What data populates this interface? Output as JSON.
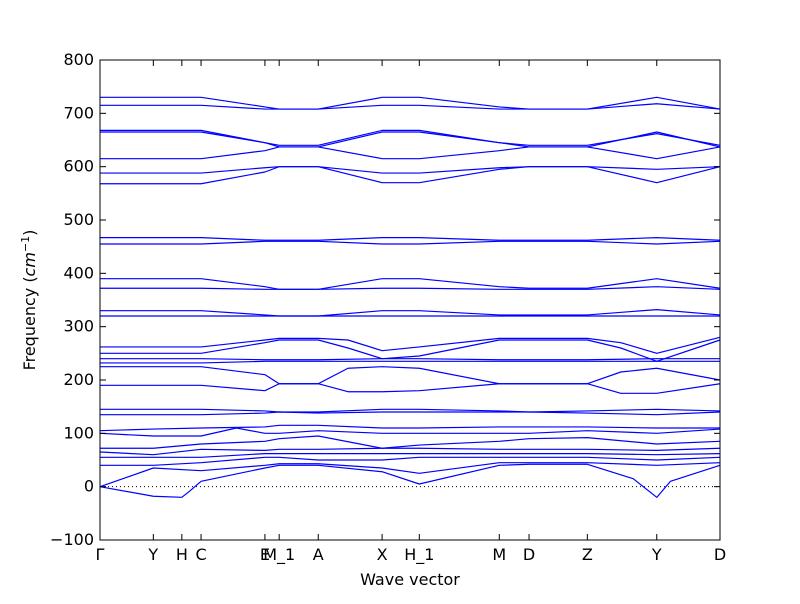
{
  "chart_data": {
    "type": "line",
    "title": "",
    "xlabel": "Wave vector",
    "ylabel": "Frequency (cm^{-1})",
    "ylabel_parts": {
      "prefix": "Frequency (",
      "unit_base": "cm",
      "unit_exp": "−1",
      "suffix": ")"
    },
    "ylim": [
      -100,
      800
    ],
    "yticks": [
      -100,
      0,
      100,
      200,
      300,
      400,
      500,
      600,
      700,
      800
    ],
    "y_tick_labels": [
      "−100",
      "0",
      "100",
      "200",
      "300",
      "400",
      "500",
      "600",
      "700",
      "800"
    ],
    "xlim": [
      0,
      100
    ],
    "high_symmetry_points": [
      {
        "label": "Γ",
        "x": 0
      },
      {
        "label": "Y",
        "x": 8.6
      },
      {
        "label": "H",
        "x": 13.2
      },
      {
        "label": "C",
        "x": 16.3
      },
      {
        "label": "E",
        "x": 26.6
      },
      {
        "label": "M_1",
        "x": 28.9
      },
      {
        "label": "A",
        "x": 35.2
      },
      {
        "label": "X",
        "x": 45.5
      },
      {
        "label": "H_1",
        "x": 51.5
      },
      {
        "label": "M",
        "x": 64.4
      },
      {
        "label": "D",
        "x": 69.2
      },
      {
        "label": "Z",
        "x": 78.6
      },
      {
        "label": "Y",
        "x": 89.8
      },
      {
        "label": "D",
        "x": 100
      }
    ],
    "zero_line": 0,
    "line_color": "#0000ff",
    "grid": false,
    "series": [
      {
        "x": [
          0,
          8.6,
          13.2,
          14.5,
          16.3
        ],
        "y": [
          0,
          -18,
          -20,
          -8,
          10
        ]
      },
      {
        "x": [
          16.3,
          26.6,
          28.9,
          35.2,
          45.5,
          51.5,
          64.4,
          69.2,
          78.6,
          86,
          89.8,
          92,
          100
        ],
        "y": [
          10,
          35,
          40,
          40,
          28,
          5,
          40,
          42,
          42,
          15,
          -20,
          10,
          40
        ]
      },
      {
        "x": [
          0,
          8.6,
          16.3,
          26.6,
          28.9,
          35.2,
          45.5,
          51.5,
          64.4,
          69.2,
          78.6,
          89.8,
          100
        ],
        "y": [
          0,
          35,
          30,
          40,
          43,
          43,
          35,
          25,
          45,
          45,
          45,
          40,
          45
        ]
      },
      {
        "x": [
          0,
          8.6,
          16.3,
          26.6,
          28.9,
          35.2,
          45.5,
          51.5,
          64.4,
          69.2,
          78.6,
          89.8,
          100
        ],
        "y": [
          40,
          40,
          45,
          55,
          55,
          50,
          50,
          55,
          55,
          55,
          55,
          50,
          55
        ]
      },
      {
        "x": [
          0,
          8.6,
          16.3,
          26.6,
          28.9,
          35.2,
          45.5,
          51.5,
          64.4,
          69.2,
          78.6,
          89.8,
          100
        ],
        "y": [
          55,
          55,
          55,
          62,
          62,
          62,
          62,
          62,
          62,
          62,
          62,
          60,
          62
        ]
      },
      {
        "x": [
          0,
          8.6,
          16.3,
          26.6,
          28.9,
          35.2,
          45.5,
          51.5,
          64.4,
          69.2,
          78.6,
          89.8,
          100
        ],
        "y": [
          65,
          60,
          70,
          68,
          70,
          70,
          72,
          72,
          70,
          70,
          70,
          68,
          72
        ]
      },
      {
        "x": [
          0,
          8.6,
          16.3,
          26.6,
          28.9,
          35.2,
          45.5,
          51.5,
          64.4,
          69.2,
          78.6,
          89.8,
          100
        ],
        "y": [
          72,
          72,
          80,
          85,
          90,
          95,
          72,
          78,
          85,
          90,
          92,
          80,
          85
        ]
      },
      {
        "x": [
          0,
          8.6,
          16.3,
          22,
          26.6,
          28.9,
          35.2,
          45.5,
          51.5,
          64.4,
          69.2,
          78.6,
          89.8,
          100
        ],
        "y": [
          100,
          95,
          95,
          110,
          100,
          100,
          105,
          100,
          100,
          100,
          100,
          105,
          100,
          108
        ]
      },
      {
        "x": [
          0,
          8.6,
          16.3,
          26.6,
          28.9,
          35.2,
          45.5,
          51.5,
          64.4,
          69.2,
          78.6,
          89.8,
          100
        ],
        "y": [
          105,
          108,
          110,
          112,
          115,
          115,
          110,
          110,
          112,
          112,
          112,
          110,
          110
        ]
      },
      {
        "x": [
          0,
          8.6,
          16.3,
          26.6,
          28.9,
          35.2,
          45.5,
          51.5,
          64.4,
          69.2,
          78.6,
          89.8,
          100
        ],
        "y": [
          135,
          135,
          135,
          138,
          140,
          138,
          140,
          140,
          140,
          140,
          138,
          135,
          140
        ]
      },
      {
        "x": [
          0,
          8.6,
          16.3,
          26.6,
          28.9,
          35.2,
          45.5,
          51.5,
          64.4,
          69.2,
          78.6,
          89.8,
          100
        ],
        "y": [
          145,
          145,
          145,
          142,
          140,
          140,
          145,
          145,
          142,
          140,
          142,
          145,
          142
        ]
      },
      {
        "x": [
          0,
          8.6,
          16.3,
          26.6,
          28.9,
          35.2,
          40,
          45.5,
          51.5,
          64.4,
          69.2,
          78.6,
          84,
          89.8,
          100
        ],
        "y": [
          190,
          190,
          190,
          180,
          193,
          193,
          178,
          178,
          180,
          193,
          193,
          193,
          175,
          175,
          193
        ]
      },
      {
        "x": [
          0,
          8.6,
          16.3,
          26.6,
          28.9,
          35.2,
          40,
          45.5,
          51.5,
          64.4,
          69.2,
          78.6,
          84,
          89.8,
          100
        ],
        "y": [
          225,
          225,
          225,
          210,
          193,
          193,
          222,
          225,
          222,
          193,
          193,
          193,
          215,
          222,
          200
        ]
      },
      {
        "x": [
          0,
          8.6,
          16.3,
          26.6,
          28.9,
          35.2,
          45.5,
          51.5,
          64.4,
          69.2,
          78.6,
          89.8,
          100
        ],
        "y": [
          232,
          232,
          232,
          235,
          235,
          235,
          235,
          235,
          235,
          235,
          235,
          235,
          235
        ]
      },
      {
        "x": [
          0,
          8.6,
          16.3,
          26.6,
          28.9,
          35.2,
          45.5,
          51.5,
          64.4,
          69.2,
          78.6,
          89.8,
          100
        ],
        "y": [
          240,
          240,
          240,
          238,
          238,
          238,
          240,
          240,
          238,
          238,
          238,
          240,
          240
        ]
      },
      {
        "x": [
          0,
          8.6,
          16.3,
          26.6,
          28.9,
          35.2,
          40,
          45.5,
          51.5,
          64.4,
          69.2,
          78.6,
          84,
          89.8,
          100
        ],
        "y": [
          250,
          250,
          250,
          270,
          275,
          275,
          260,
          240,
          245,
          275,
          275,
          275,
          260,
          235,
          275
        ]
      },
      {
        "x": [
          0,
          8.6,
          16.3,
          26.6,
          28.9,
          35.2,
          40,
          45.5,
          51.5,
          64.4,
          69.2,
          78.6,
          84,
          89.8,
          100
        ],
        "y": [
          262,
          262,
          262,
          275,
          278,
          278,
          275,
          255,
          262,
          278,
          278,
          278,
          270,
          250,
          280
        ]
      },
      {
        "x": [
          0,
          8.6,
          16.3,
          26.6,
          28.9,
          35.2,
          45.5,
          51.5,
          64.4,
          69.2,
          78.6,
          89.8,
          100
        ],
        "y": [
          320,
          320,
          320,
          320,
          320,
          320,
          320,
          320,
          320,
          320,
          320,
          320,
          320
        ]
      },
      {
        "x": [
          0,
          8.6,
          16.3,
          26.6,
          28.9,
          35.2,
          45.5,
          51.5,
          64.4,
          69.2,
          78.6,
          89.8,
          100
        ],
        "y": [
          330,
          330,
          330,
          322,
          320,
          320,
          330,
          330,
          322,
          322,
          322,
          332,
          322
        ]
      },
      {
        "x": [
          0,
          8.6,
          16.3,
          26.6,
          28.9,
          35.2,
          45.5,
          51.5,
          64.4,
          69.2,
          78.6,
          89.8,
          100
        ],
        "y": [
          372,
          372,
          372,
          370,
          370,
          370,
          372,
          372,
          370,
          370,
          370,
          375,
          370
        ]
      },
      {
        "x": [
          0,
          8.6,
          16.3,
          26.6,
          28.9,
          35.2,
          45.5,
          51.5,
          64.4,
          69.2,
          78.6,
          89.8,
          100
        ],
        "y": [
          390,
          390,
          390,
          375,
          370,
          370,
          390,
          390,
          375,
          372,
          372,
          390,
          372
        ]
      },
      {
        "x": [
          0,
          8.6,
          16.3,
          26.6,
          28.9,
          35.2,
          45.5,
          51.5,
          64.4,
          69.2,
          78.6,
          89.8,
          100
        ],
        "y": [
          455,
          455,
          455,
          460,
          460,
          460,
          455,
          455,
          460,
          460,
          460,
          455,
          460
        ]
      },
      {
        "x": [
          0,
          8.6,
          16.3,
          26.6,
          28.9,
          35.2,
          45.5,
          51.5,
          64.4,
          69.2,
          78.6,
          89.8,
          100
        ],
        "y": [
          467,
          467,
          467,
          462,
          462,
          462,
          467,
          467,
          462,
          462,
          462,
          467,
          462
        ]
      },
      {
        "x": [
          0,
          8.6,
          16.3,
          26.6,
          28.9,
          35.2,
          45.5,
          51.5,
          64.4,
          69.2,
          78.6,
          89.8,
          100
        ],
        "y": [
          568,
          568,
          568,
          590,
          600,
          600,
          570,
          570,
          595,
          600,
          600,
          570,
          600
        ]
      },
      {
        "x": [
          0,
          8.6,
          16.3,
          26.6,
          28.9,
          35.2,
          45.5,
          51.5,
          64.4,
          69.2,
          78.6,
          89.8,
          100
        ],
        "y": [
          588,
          588,
          588,
          598,
          600,
          600,
          588,
          588,
          598,
          600,
          600,
          595,
          600
        ]
      },
      {
        "x": [
          0,
          8.6,
          16.3,
          26.6,
          28.9,
          35.2,
          45.5,
          51.5,
          64.4,
          69.2,
          78.6,
          89.8,
          100
        ],
        "y": [
          615,
          615,
          615,
          630,
          637,
          637,
          615,
          615,
          630,
          637,
          637,
          615,
          637
        ]
      },
      {
        "x": [
          0,
          8.6,
          16.3,
          26.6,
          28.9,
          35.2,
          45.5,
          51.5,
          64.4,
          69.2,
          78.6,
          89.8,
          100
        ],
        "y": [
          665,
          665,
          665,
          645,
          637,
          637,
          665,
          665,
          645,
          637,
          637,
          665,
          637
        ]
      },
      {
        "x": [
          0,
          8.6,
          16.3,
          26.6,
          28.9,
          35.2,
          45.5,
          51.5,
          64.4,
          69.2,
          78.6,
          89.8,
          100
        ],
        "y": [
          668,
          668,
          668,
          645,
          640,
          640,
          668,
          668,
          645,
          640,
          640,
          662,
          640
        ]
      },
      {
        "x": [
          0,
          8.6,
          16.3,
          26.6,
          28.9,
          35.2,
          45.5,
          51.5,
          64.4,
          69.2,
          78.6,
          89.8,
          100
        ],
        "y": [
          715,
          715,
          715,
          708,
          708,
          708,
          715,
          715,
          708,
          708,
          708,
          718,
          708
        ]
      },
      {
        "x": [
          0,
          8.6,
          16.3,
          26.6,
          28.9,
          35.2,
          45.5,
          51.5,
          64.4,
          69.2,
          78.6,
          89.8,
          100
        ],
        "y": [
          730,
          730,
          730,
          712,
          708,
          708,
          730,
          730,
          712,
          708,
          708,
          730,
          708
        ]
      }
    ]
  }
}
